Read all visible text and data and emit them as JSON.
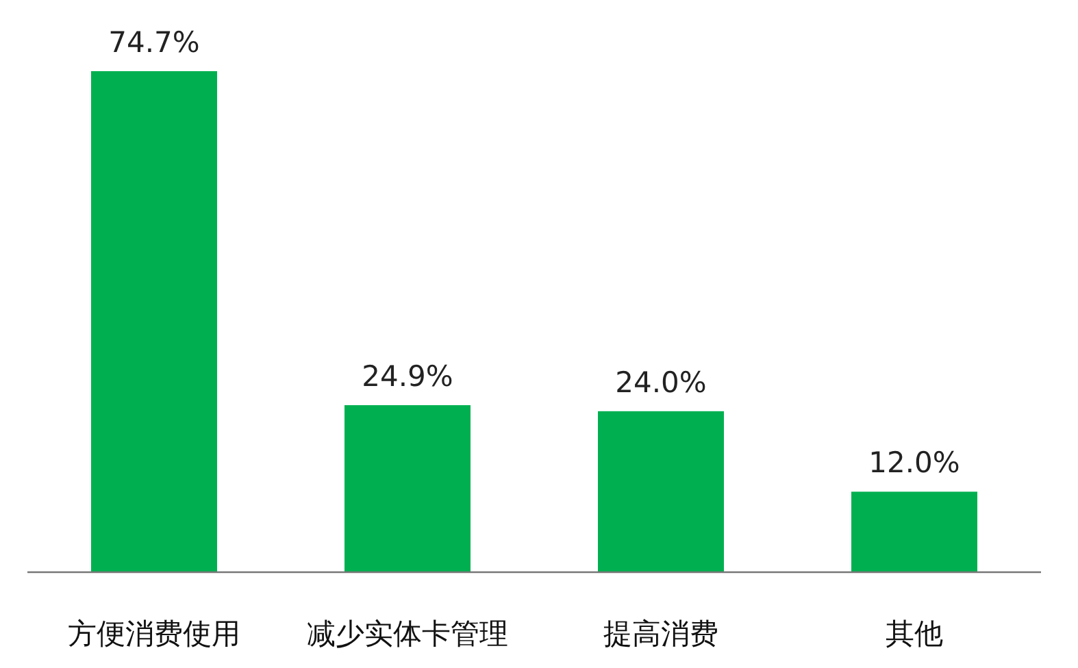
{
  "chart_data": {
    "type": "bar",
    "categories": [
      "方便消费使用",
      "减少实体卡管理",
      "提高消费",
      "其他"
    ],
    "values": [
      74.7,
      24.9,
      24.0,
      12.0
    ],
    "value_labels": [
      "74.7%",
      "24.9%",
      "24.0%",
      "12.0%"
    ],
    "color": "#00b050"
  }
}
